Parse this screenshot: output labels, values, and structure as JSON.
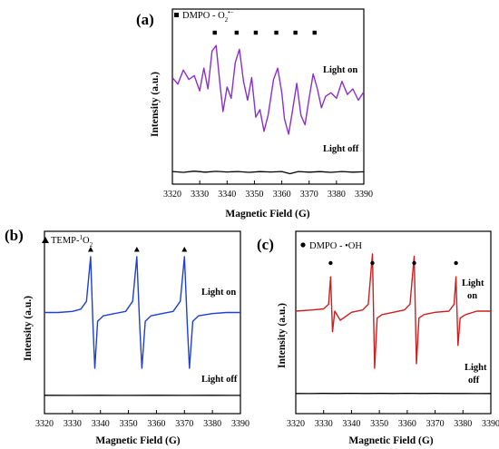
{
  "chart_data": [
    {
      "type": "line",
      "panel_label": "(a)",
      "legend": "DMPO - O",
      "legend_superscript": "•−",
      "legend_subscript": "2",
      "legend_marker": "square",
      "xlabel": "Magnetic Field (G)",
      "ylabel": "Intensity (a.u.)",
      "xlim": [
        3320,
        3390
      ],
      "xticks": [
        3320,
        3330,
        3340,
        3350,
        3360,
        3370,
        3380,
        3390
      ],
      "markers_x": [
        3335.5,
        3343.5,
        3350.5,
        3358,
        3365,
        3372
      ],
      "series": [
        {
          "name": "Light on",
          "color": "#8b2fc9",
          "x": [
            3320,
            3322,
            3324,
            3326,
            3328,
            3330,
            3331.5,
            3333,
            3334.5,
            3336,
            3337.5,
            3338.5,
            3340,
            3341.5,
            3343,
            3344.5,
            3346,
            3347.5,
            3349,
            3350.5,
            3352,
            3353.5,
            3355,
            3357,
            3358.5,
            3360,
            3361,
            3362.5,
            3364,
            3365.5,
            3367,
            3368.5,
            3370,
            3371.5,
            3373,
            3374.5,
            3376,
            3378,
            3380,
            3382,
            3384,
            3386,
            3388,
            3390
          ],
          "y": [
            0.62,
            0.55,
            0.7,
            0.6,
            0.64,
            0.48,
            0.72,
            0.5,
            0.9,
            0.96,
            0.52,
            0.26,
            0.52,
            0.4,
            0.78,
            0.92,
            0.58,
            0.38,
            0.62,
            0.2,
            0.28,
            0.05,
            0.22,
            0.6,
            0.72,
            0.46,
            0.18,
            0.02,
            0.28,
            0.56,
            0.22,
            0.12,
            0.4,
            0.66,
            0.5,
            0.3,
            0.42,
            0.46,
            0.4,
            0.58,
            0.44,
            0.5,
            0.38,
            0.47
          ]
        },
        {
          "name": "Light off",
          "color": "#000000",
          "x": [
            3320,
            3324,
            3328,
            3332,
            3336,
            3340,
            3344,
            3348,
            3352,
            3356,
            3360,
            3363,
            3366,
            3370,
            3374,
            3378,
            3382,
            3386,
            3390
          ],
          "y": [
            0.05,
            0.0,
            0.07,
            0.01,
            0.06,
            0.02,
            0.05,
            0.0,
            0.04,
            0.02,
            0.05,
            -0.08,
            0.05,
            0.01,
            0.04,
            0.0,
            0.05,
            0.01,
            0.03
          ]
        }
      ],
      "annotations": {
        "on": "Light on",
        "off": "Light off"
      }
    },
    {
      "type": "line",
      "panel_label": "(b)",
      "legend": "TEMP-",
      "legend_superscript": "1",
      "legend_tail": "O",
      "legend_subscript": "2",
      "legend_marker": "triangle",
      "xlabel": "Magnetic Field (G)",
      "ylabel": "Intensity (a.u.)",
      "xlim": [
        3320,
        3390
      ],
      "xticks": [
        3320,
        3330,
        3340,
        3350,
        3360,
        3370,
        3380,
        3390
      ],
      "markers_x": [
        3336.5,
        3353,
        3370
      ],
      "series": [
        {
          "name": "Light on",
          "color": "#1f3fd6",
          "x": [
            3320,
            3325,
            3330,
            3333,
            3335,
            3336.5,
            3337.3,
            3338,
            3339,
            3341,
            3345,
            3349,
            3351.5,
            3353,
            3354,
            3354.8,
            3356,
            3358,
            3362,
            3366,
            3368.5,
            3370,
            3371,
            3371.8,
            3373,
            3375,
            3380,
            3385,
            3390
          ],
          "y": [
            0.5,
            0.5,
            0.51,
            0.53,
            0.6,
            1.0,
            0.4,
            0.0,
            0.42,
            0.47,
            0.49,
            0.51,
            0.6,
            1.0,
            0.4,
            0.0,
            0.42,
            0.47,
            0.49,
            0.51,
            0.6,
            1.0,
            0.4,
            0.0,
            0.42,
            0.47,
            0.49,
            0.5,
            0.5
          ]
        },
        {
          "name": "Light off",
          "color": "#000000",
          "x": [
            3320,
            3330,
            3340,
            3350,
            3360,
            3370,
            3380,
            3390
          ],
          "y": [
            0.03,
            0.02,
            0.03,
            0.02,
            0.03,
            0.02,
            0.03,
            0.02
          ]
        }
      ],
      "annotations": {
        "on": "Light on",
        "off": "Light off"
      }
    },
    {
      "type": "line",
      "panel_label": "(c)",
      "legend": "DMPO - •OH",
      "legend_marker": "circle",
      "xlabel": "Magnetic Field (G)",
      "ylabel": "Intensity (a.u.)",
      "xlim": [
        3320,
        3390
      ],
      "xticks": [
        3320,
        3330,
        3340,
        3350,
        3360,
        3370,
        3380,
        3390
      ],
      "markers_x": [
        3332.5,
        3347.5,
        3362.5,
        3377.5
      ],
      "series": [
        {
          "name": "Light on",
          "color": "#cc1f1f",
          "x": [
            3320,
            3326,
            3330,
            3331.8,
            3332.5,
            3333.2,
            3334,
            3336,
            3340,
            3344,
            3346,
            3347.5,
            3348.3,
            3349.2,
            3351,
            3355,
            3359,
            3361,
            3362.5,
            3363.3,
            3364.2,
            3366,
            3370,
            3375,
            3376.8,
            3377.5,
            3378.2,
            3379,
            3381,
            3385,
            3390
          ],
          "y": [
            0.5,
            0.51,
            0.52,
            0.56,
            0.8,
            0.32,
            0.5,
            0.42,
            0.49,
            0.51,
            0.56,
            1.0,
            0.0,
            0.44,
            0.47,
            0.49,
            0.51,
            0.56,
            0.98,
            0.04,
            0.44,
            0.47,
            0.49,
            0.5,
            0.56,
            0.8,
            0.2,
            0.44,
            0.47,
            0.5,
            0.5
          ]
        },
        {
          "name": "Light off",
          "color": "#000000",
          "x": [
            3320,
            3325,
            3330,
            3335,
            3340,
            3345,
            3350,
            3355,
            3360,
            3365,
            3370,
            3375,
            3380,
            3385,
            3390
          ],
          "y": [
            0.04,
            0.02,
            0.05,
            0.03,
            0.06,
            0.03,
            0.05,
            0.04,
            0.06,
            0.03,
            0.05,
            0.03,
            0.04,
            0.02,
            0.04
          ]
        }
      ],
      "annotations": {
        "on_line1": "Light",
        "on_line2": "on",
        "off_line1": "Light",
        "off_line2": "off"
      }
    }
  ]
}
